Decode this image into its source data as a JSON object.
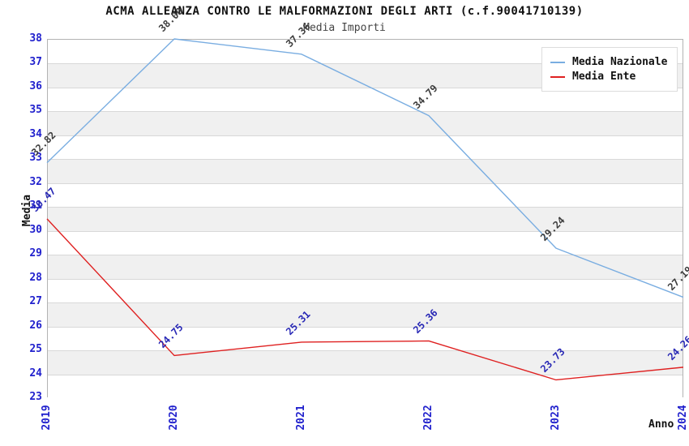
{
  "header": {
    "title": "ACMA ALLEANZA CONTRO LE MALFORMAZIONI DEGLI ARTI (c.f.90041710139)",
    "subtitle": "Media Importi"
  },
  "chart_data": {
    "type": "line",
    "x": [
      "2019",
      "2020",
      "2021",
      "2022",
      "2023",
      "2024"
    ],
    "series": [
      {
        "name": "Media Nazionale",
        "color": "#79ade1",
        "label_color": "#3d3d3d",
        "values": [
          32.82,
          38.0,
          37.36,
          34.79,
          29.24,
          27.19
        ],
        "labels": [
          "32.82",
          "38.00",
          "37.36",
          "34.79",
          "29.24",
          "27.19"
        ]
      },
      {
        "name": "Media Ente",
        "color": "#df2020",
        "label_color": "#2727b5",
        "values": [
          30.47,
          24.75,
          25.31,
          25.36,
          23.73,
          24.26
        ],
        "labels": [
          "30.47",
          "24.75",
          "25.31",
          "25.36",
          "23.73",
          "24.26"
        ]
      }
    ],
    "xlabel": "Anno",
    "ylabel": "Media",
    "ylim": [
      23,
      38
    ],
    "ytick_step": 1,
    "grid": true,
    "legend_position": "top-right",
    "band_colors": [
      "#ffffff",
      "#f0f0f0"
    ],
    "tick_color": "#2121cd"
  }
}
